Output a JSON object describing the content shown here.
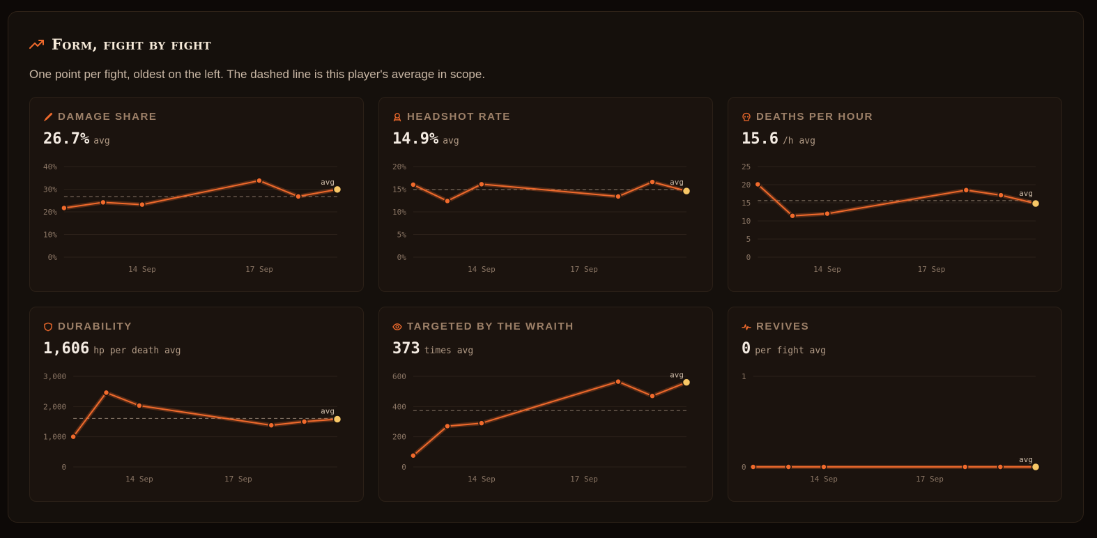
{
  "header": {
    "title": "Form, fight by fight",
    "subtitle": "One point per fight, oldest on the left. The dashed line is this player's average in scope.",
    "icon": "trend-up-icon"
  },
  "colors": {
    "accent": "#f06a2c",
    "last_point": "#f7c766",
    "avg_line": "#8c7b6c",
    "grid": "#2b2019"
  },
  "chart_data": [
    {
      "id": "damage-share",
      "type": "line",
      "icon": "dagger-icon",
      "title": "Damage share",
      "value": "26.7%",
      "unit": "avg",
      "x": [
        "12 Sep",
        "13 Sep",
        "14 Sep",
        "17 Sep",
        "18 Sep",
        "19 Sep"
      ],
      "xticks": [
        {
          "at": "14 Sep",
          "label": "14 Sep"
        },
        {
          "at": "17 Sep",
          "label": "17 Sep"
        }
      ],
      "y": [
        21.7,
        24.2,
        23.2,
        33.8,
        26.8,
        29.9
      ],
      "avg": 26.7,
      "avg_label": "avg",
      "ylim": [
        0,
        40
      ],
      "yticks": [
        0,
        10,
        20,
        30,
        40
      ],
      "ytick_labels": [
        "0%",
        "10%",
        "20%",
        "30%",
        "40%"
      ]
    },
    {
      "id": "headshot-rate",
      "type": "line",
      "icon": "target-icon",
      "title": "Headshot rate",
      "value": "14.9%",
      "unit": "avg",
      "x": [
        "12 Sep",
        "13 Sep",
        "14 Sep",
        "18 Sep",
        "19 Sep",
        "20 Sep"
      ],
      "xticks": [
        {
          "at": "14 Sep",
          "label": "14 Sep"
        },
        {
          "at": "17 Sep",
          "label": "17 Sep"
        }
      ],
      "y": [
        16.0,
        12.4,
        16.1,
        13.4,
        16.6,
        14.6
      ],
      "avg": 14.9,
      "avg_label": "avg",
      "ylim": [
        0,
        20
      ],
      "yticks": [
        0,
        5,
        10,
        15,
        20
      ],
      "ytick_labels": [
        "0%",
        "5%",
        "10%",
        "15%",
        "20%"
      ]
    },
    {
      "id": "deaths-per-hour",
      "type": "line",
      "icon": "skull-icon",
      "title": "Deaths per hour",
      "value": "15.6",
      "unit": "/h avg",
      "x": [
        "12 Sep",
        "13 Sep",
        "14 Sep",
        "18 Sep",
        "19 Sep",
        "20 Sep"
      ],
      "xticks": [
        {
          "at": "14 Sep",
          "label": "14 Sep"
        },
        {
          "at": "17 Sep",
          "label": "17 Sep"
        }
      ],
      "y": [
        20.1,
        11.4,
        12.0,
        18.5,
        17.1,
        14.8
      ],
      "avg": 15.6,
      "avg_label": "avg",
      "ylim": [
        0,
        25
      ],
      "yticks": [
        0,
        5,
        10,
        15,
        20,
        25
      ],
      "ytick_labels": [
        "0",
        "5",
        "10",
        "15",
        "20",
        "25"
      ]
    },
    {
      "id": "durability",
      "type": "line",
      "icon": "shield-icon",
      "title": "Durability",
      "value": "1,606",
      "unit": "hp per death avg",
      "x": [
        "12 Sep",
        "13 Sep",
        "14 Sep",
        "18 Sep",
        "19 Sep",
        "20 Sep"
      ],
      "xticks": [
        {
          "at": "14 Sep",
          "label": "14 Sep"
        },
        {
          "at": "17 Sep",
          "label": "17 Sep"
        }
      ],
      "y": [
        1000,
        2460,
        2030,
        1380,
        1500,
        1580
      ],
      "avg": 1606,
      "avg_label": "avg",
      "ylim": [
        0,
        3000
      ],
      "yticks": [
        0,
        1000,
        2000,
        3000
      ],
      "ytick_labels": [
        "0",
        "1,000",
        "2,000",
        "3,000"
      ]
    },
    {
      "id": "targeted-by-wraith",
      "type": "line",
      "icon": "eye-icon",
      "title": "Targeted by The Wraith",
      "value": "373",
      "unit": "times avg",
      "x": [
        "12 Sep",
        "13 Sep",
        "14 Sep",
        "18 Sep",
        "19 Sep",
        "20 Sep"
      ],
      "xticks": [
        {
          "at": "14 Sep",
          "label": "14 Sep"
        },
        {
          "at": "17 Sep",
          "label": "17 Sep"
        }
      ],
      "y": [
        75,
        270,
        290,
        565,
        470,
        560
      ],
      "avg": 373,
      "avg_label": "avg",
      "ylim": [
        0,
        600
      ],
      "yticks": [
        0,
        200,
        400,
        600
      ],
      "ytick_labels": [
        "0",
        "200",
        "400",
        "600"
      ]
    },
    {
      "id": "revives",
      "type": "line",
      "icon": "pulse-icon",
      "title": "Revives",
      "value": "0",
      "unit": "per fight avg",
      "x": [
        "12 Sep",
        "13 Sep",
        "14 Sep",
        "18 Sep",
        "19 Sep",
        "20 Sep"
      ],
      "xticks": [
        {
          "at": "14 Sep",
          "label": "14 Sep"
        },
        {
          "at": "17 Sep",
          "label": "17 Sep"
        }
      ],
      "y": [
        0,
        0,
        0,
        0,
        0,
        0
      ],
      "avg": 0,
      "avg_label": "avg",
      "ylim": [
        0,
        1
      ],
      "yticks": [
        0,
        1
      ],
      "ytick_labels": [
        "0",
        "1"
      ]
    }
  ]
}
